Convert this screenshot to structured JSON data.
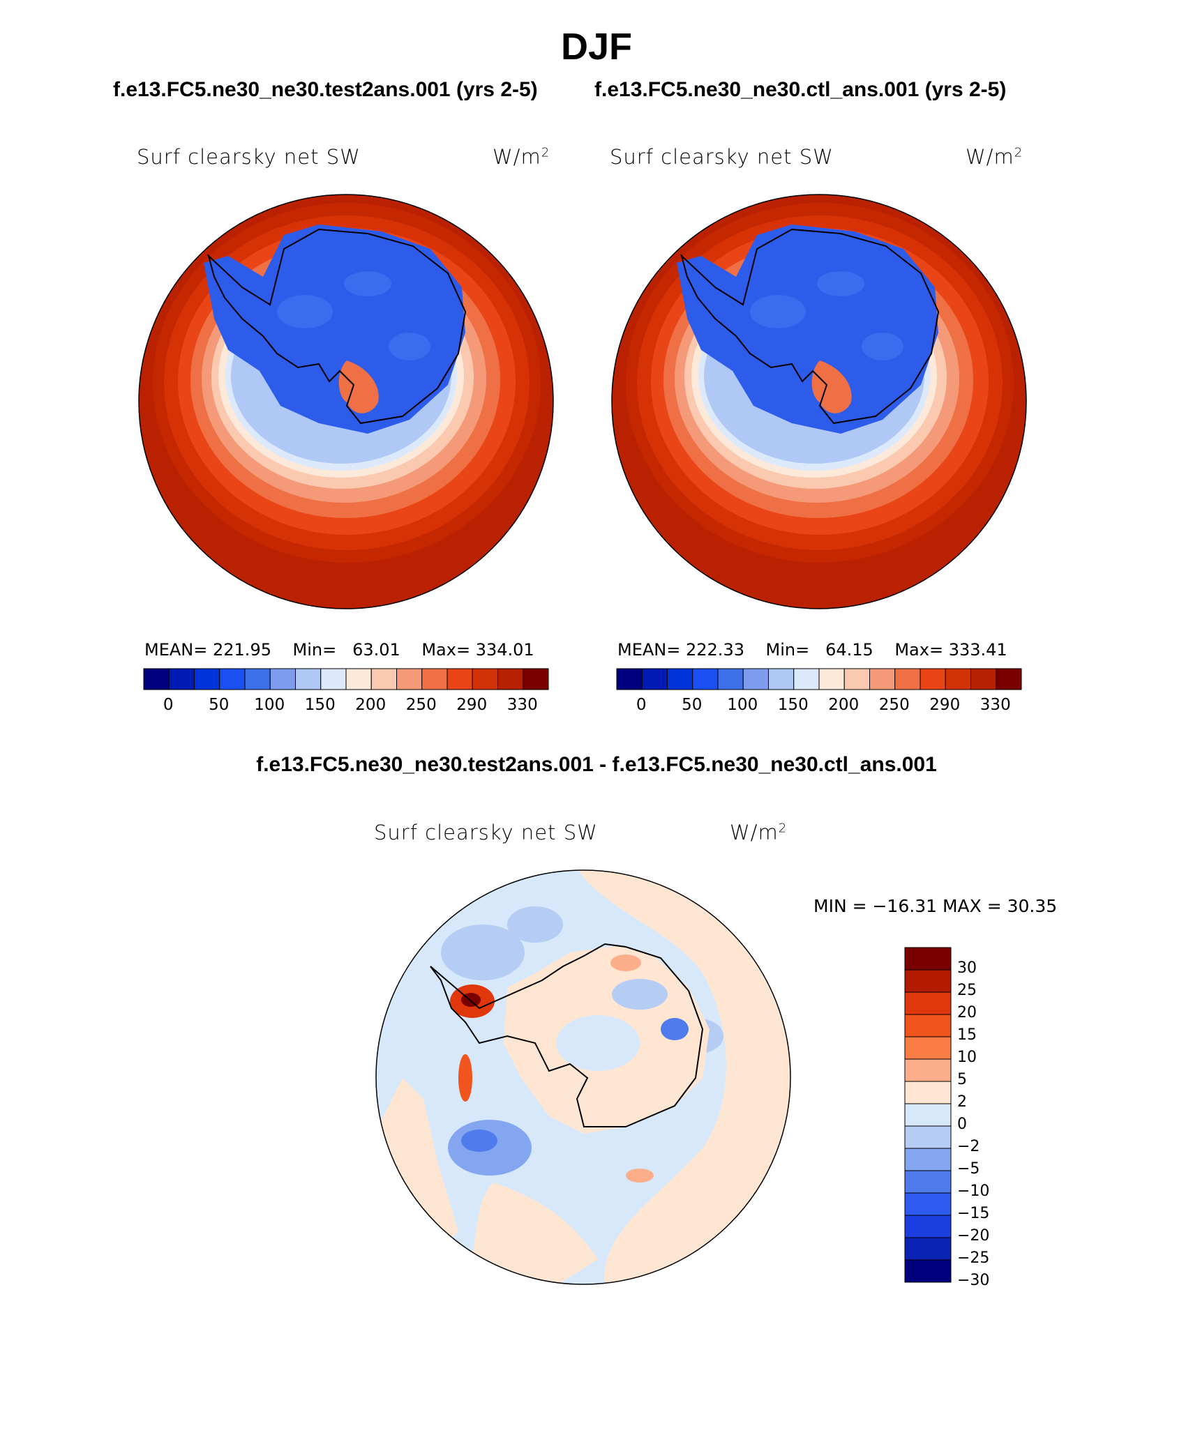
{
  "title": "DJF",
  "case_titles": {
    "test": "f.e13.FC5.ne30_ne30.test2ans.001 (yrs 2-5)",
    "ctl": "f.e13.FC5.ne30_ne30.ctl_ans.001 (yrs 2-5)"
  },
  "diff_title": "f.e13.FC5.ne30_ne30.test2ans.001 - f.e13.FC5.ne30_ne30.ctl_ans.001",
  "chart_data": [
    {
      "type": "heatmap",
      "projection": "south-polar stereographic",
      "variable": "Surf clearsky net SW",
      "units": "W/m",
      "units_exp": "2",
      "stats": {
        "mean_label": "MEAN=",
        "mean": "221.95",
        "min_label": "Min=",
        "min": "63.01",
        "max_label": "Max=",
        "max": "334.01"
      },
      "colorbar": {
        "orientation": "horizontal",
        "tick_labels": [
          "0",
          "50",
          "100",
          "150",
          "200",
          "250",
          "290",
          "330"
        ]
      }
    },
    {
      "type": "heatmap",
      "projection": "south-polar stereographic",
      "variable": "Surf clearsky net SW",
      "units": "W/m",
      "units_exp": "2",
      "stats": {
        "mean_label": "MEAN=",
        "mean": "222.33",
        "min_label": "Min=",
        "min": "64.15",
        "max_label": "Max=",
        "max": "333.41"
      },
      "colorbar": {
        "orientation": "horizontal",
        "tick_labels": [
          "0",
          "50",
          "100",
          "150",
          "200",
          "250",
          "290",
          "330"
        ]
      }
    },
    {
      "type": "heatmap",
      "projection": "south-polar stereographic",
      "variable": "Surf clearsky net SW",
      "units": "W/m",
      "units_exp": "2",
      "stats_text": "MIN = −16.31 MAX =  30.35",
      "colorbar": {
        "orientation": "vertical",
        "tick_labels": [
          "30",
          "25",
          "20",
          "15",
          "10",
          "5",
          "2",
          "0",
          "−2",
          "−5",
          "−10",
          "−15",
          "−20",
          "−25",
          "−30"
        ]
      }
    }
  ],
  "colors": {
    "abs_scale": [
      "#00007f",
      "#001ab4",
      "#0033d9",
      "#1a4ff2",
      "#3c6fe8",
      "#7d9cee",
      "#b0c8f5",
      "#dce9fb",
      "#fde9d9",
      "#fbc9b0",
      "#f59a78",
      "#f07046",
      "#ea4516",
      "#d23208",
      "#b52100",
      "#7a0000"
    ],
    "diff_scale": [
      "#7a0000",
      "#b21b00",
      "#e0380c",
      "#f1541c",
      "#fa7d45",
      "#fcae8b",
      "#fee6d3",
      "#d6e8fa",
      "#b5ccf5",
      "#84a6f0",
      "#4f7bec",
      "#2f5af0",
      "#1a3ee0",
      "#0b23b4",
      "#00007f"
    ],
    "land_mask": "#2d5ceb",
    "ocean_far": "#b92100"
  }
}
